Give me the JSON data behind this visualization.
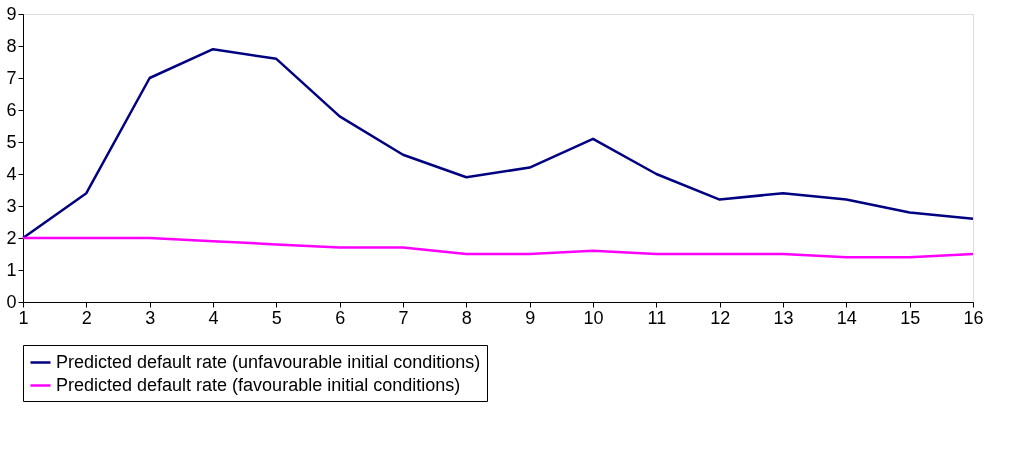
{
  "chart_data": {
    "type": "line",
    "x": [
      1,
      2,
      3,
      4,
      5,
      6,
      7,
      8,
      9,
      10,
      11,
      12,
      13,
      14,
      15,
      16
    ],
    "series": [
      {
        "name": "Predicted default rate (unfavourable initial conditions)",
        "color": "#000080",
        "values": [
          2.0,
          3.4,
          7.0,
          7.9,
          7.6,
          5.8,
          4.6,
          3.9,
          4.2,
          5.1,
          4.0,
          3.2,
          3.4,
          3.2,
          2.8,
          2.6
        ]
      },
      {
        "name": "Predicted default rate (favourable initial conditions)",
        "color": "#ff00ff",
        "values": [
          2.0,
          2.0,
          2.0,
          1.9,
          1.8,
          1.7,
          1.7,
          1.5,
          1.5,
          1.6,
          1.5,
          1.5,
          1.5,
          1.4,
          1.4,
          1.5
        ]
      }
    ],
    "xlim": [
      1,
      16
    ],
    "xticks": [
      1,
      2,
      3,
      4,
      5,
      6,
      7,
      8,
      9,
      10,
      11,
      12,
      13,
      14,
      15,
      16
    ],
    "ylim": [
      0,
      9
    ],
    "yticks": [
      0,
      1,
      2,
      3,
      4,
      5,
      6,
      7,
      8,
      9
    ],
    "legend": "bottom",
    "grid": false,
    "marker": "none",
    "line_style": "solid"
  }
}
